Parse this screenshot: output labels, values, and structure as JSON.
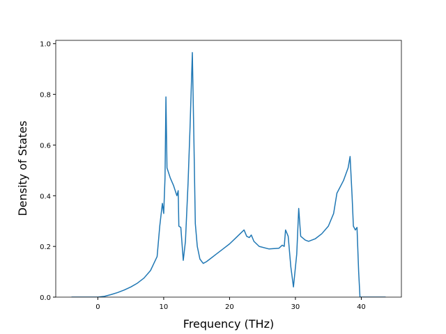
{
  "chart_data": {
    "type": "line",
    "xlabel": "Frequency (THz)",
    "ylabel": "Density of States",
    "xlim": [
      -6.39,
      46.09
    ],
    "ylim": [
      0,
      1.013
    ],
    "xticks": [
      0,
      10,
      20,
      30,
      40
    ],
    "yticks": [
      {
        "value": 0,
        "label": "0.0"
      },
      {
        "value": 0.2,
        "label": "0.2"
      },
      {
        "value": 0.4,
        "label": "0.4"
      },
      {
        "value": 0.6,
        "label": "0.6"
      },
      {
        "value": 0.8,
        "label": "0.8"
      },
      {
        "value": 1.0,
        "label": "1.0"
      }
    ],
    "series": [
      {
        "color": "#1f77b4",
        "x": [
          -4,
          0,
          1,
          2,
          3,
          4,
          5,
          6,
          7,
          8,
          9,
          9.4,
          9.8,
          10.0,
          10.2,
          10.34,
          10.5,
          11,
          11.5,
          12.0,
          12.2,
          12.3,
          12.6,
          12.97,
          13.3,
          13.7,
          14.0,
          14.35,
          14.6,
          14.8,
          15.1,
          15.5,
          16.0,
          16.5,
          17,
          18,
          19,
          20,
          21,
          22.2,
          22.6,
          23.0,
          23.3,
          23.7,
          24.5,
          26,
          27.5,
          28,
          28.3,
          28.5,
          28.9,
          29.3,
          29.7,
          30.2,
          30.5,
          30.8,
          31.5,
          32,
          33,
          34,
          35,
          35.8,
          36.3,
          37.3,
          38.0,
          38.3,
          38.6,
          38.8,
          39.1,
          39.35,
          39.6,
          39.8,
          43.7
        ],
        "values": [
          0,
          0,
          0.003,
          0.01,
          0.018,
          0.028,
          0.04,
          0.055,
          0.075,
          0.105,
          0.16,
          0.28,
          0.37,
          0.33,
          0.47,
          0.79,
          0.51,
          0.47,
          0.44,
          0.4,
          0.42,
          0.28,
          0.275,
          0.145,
          0.22,
          0.45,
          0.67,
          0.965,
          0.6,
          0.29,
          0.2,
          0.15,
          0.133,
          0.14,
          0.15,
          0.17,
          0.19,
          0.21,
          0.235,
          0.265,
          0.24,
          0.235,
          0.245,
          0.22,
          0.2,
          0.19,
          0.193,
          0.205,
          0.2,
          0.265,
          0.24,
          0.12,
          0.04,
          0.17,
          0.35,
          0.24,
          0.225,
          0.22,
          0.23,
          0.25,
          0.28,
          0.33,
          0.41,
          0.46,
          0.51,
          0.555,
          0.4,
          0.28,
          0.265,
          0.275,
          0.1,
          0,
          0
        ]
      }
    ]
  }
}
